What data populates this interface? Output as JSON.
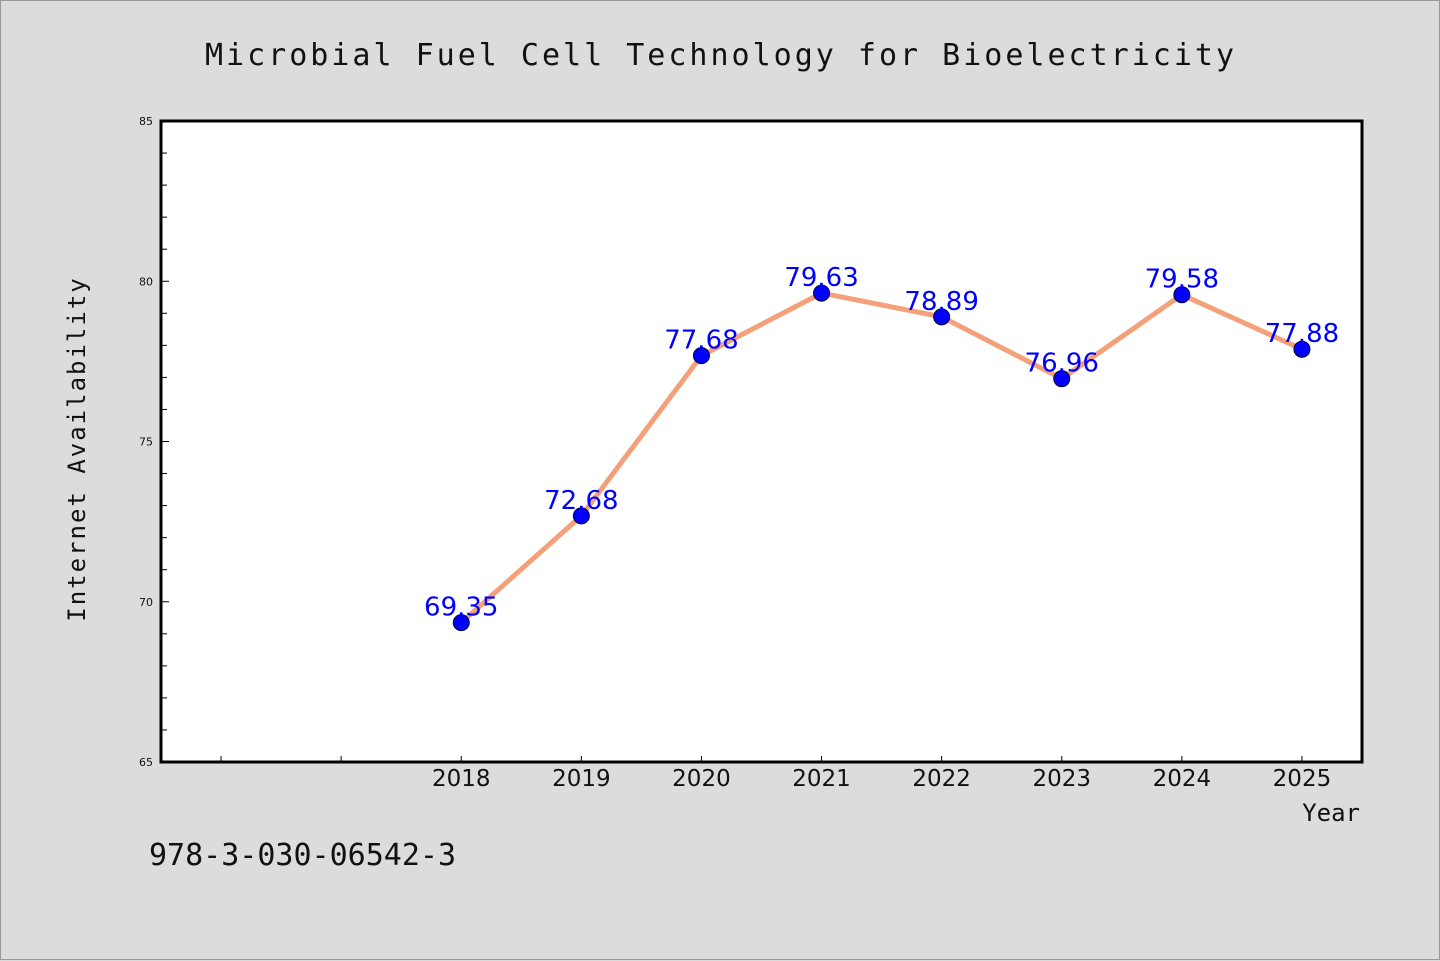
{
  "chart_data": {
    "type": "line",
    "title": "Microbial Fuel Cell Technology for Bioelectricity",
    "xlabel": "Year",
    "ylabel": "Internet Availability",
    "categories": [
      "2018",
      "2019",
      "2020",
      "2021",
      "2022",
      "2023",
      "2024",
      "2025"
    ],
    "series": [
      {
        "values": [
          69.35,
          72.68,
          77.68,
          79.63,
          78.89,
          76.96,
          79.58,
          77.88
        ],
        "labels": [
          "69.35",
          "72.68",
          "77.68",
          "79.63",
          "78.89",
          "76.96",
          "79.58",
          "77.88"
        ]
      }
    ],
    "ylim": [
      65,
      85
    ],
    "yticks": [
      "65",
      "70",
      "75",
      "80",
      "85"
    ],
    "xlim": [
      2015.5,
      2025.5
    ],
    "grid": false,
    "line_color": "#f4a07a",
    "marker_color": "#0000ff",
    "label_color": "#0000ff"
  },
  "footer": {
    "text": "978-3-030-06542-3"
  }
}
